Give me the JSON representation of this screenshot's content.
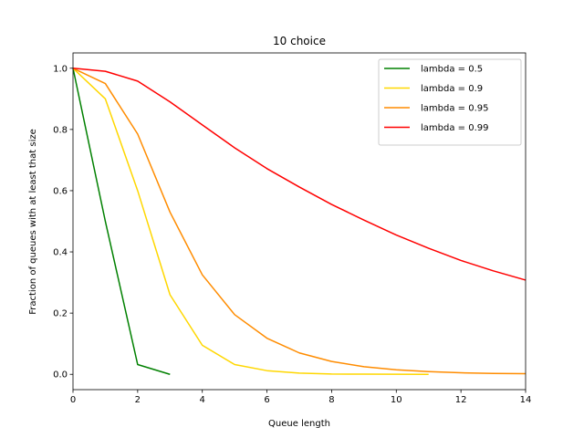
{
  "chart_data": {
    "type": "line",
    "title": "10 choice",
    "xlabel": "Queue length",
    "ylabel": "Fraction of queues with at least that size",
    "xlim": [
      0,
      14
    ],
    "ylim": [
      -0.05,
      1.05
    ],
    "xticks": [
      0,
      2,
      4,
      6,
      8,
      10,
      12,
      14
    ],
    "yticks": [
      0.0,
      0.2,
      0.4,
      0.6,
      0.8,
      1.0
    ],
    "xtick_labels": [
      "0",
      "2",
      "4",
      "6",
      "8",
      "10",
      "12",
      "14"
    ],
    "ytick_labels": [
      "0.0",
      "0.2",
      "0.4",
      "0.6",
      "0.8",
      "1.0"
    ],
    "grid": false,
    "legend_position": "top-right",
    "series": [
      {
        "name": "lambda = 0.5",
        "color": "#008000",
        "x": [
          0,
          1,
          2,
          3
        ],
        "y": [
          1.0,
          0.5,
          0.032,
          0.0
        ]
      },
      {
        "name": "lambda = 0.9",
        "color": "#FFD700",
        "x": [
          0,
          1,
          2,
          3,
          4,
          5,
          6,
          7,
          8,
          9,
          10,
          11
        ],
        "y": [
          1.0,
          0.9,
          0.6,
          0.26,
          0.095,
          0.032,
          0.012,
          0.004,
          0.001,
          0.0005,
          0.0002,
          0.0
        ]
      },
      {
        "name": "lambda = 0.95",
        "color": "#FF8C00",
        "x": [
          0,
          1,
          2,
          3,
          4,
          5,
          6,
          7,
          8,
          9,
          10,
          11,
          12,
          13,
          14
        ],
        "y": [
          1.0,
          0.95,
          0.785,
          0.53,
          0.325,
          0.195,
          0.118,
          0.07,
          0.042,
          0.025,
          0.015,
          0.009,
          0.005,
          0.003,
          0.002
        ]
      },
      {
        "name": "lambda = 0.99",
        "color": "#FF0000",
        "x": [
          0,
          1,
          2,
          3,
          4,
          5,
          6,
          7,
          8,
          9,
          10,
          11,
          12,
          13,
          14
        ],
        "y": [
          1.0,
          0.99,
          0.958,
          0.89,
          0.815,
          0.74,
          0.672,
          0.612,
          0.555,
          0.504,
          0.455,
          0.412,
          0.372,
          0.338,
          0.308
        ]
      }
    ]
  }
}
